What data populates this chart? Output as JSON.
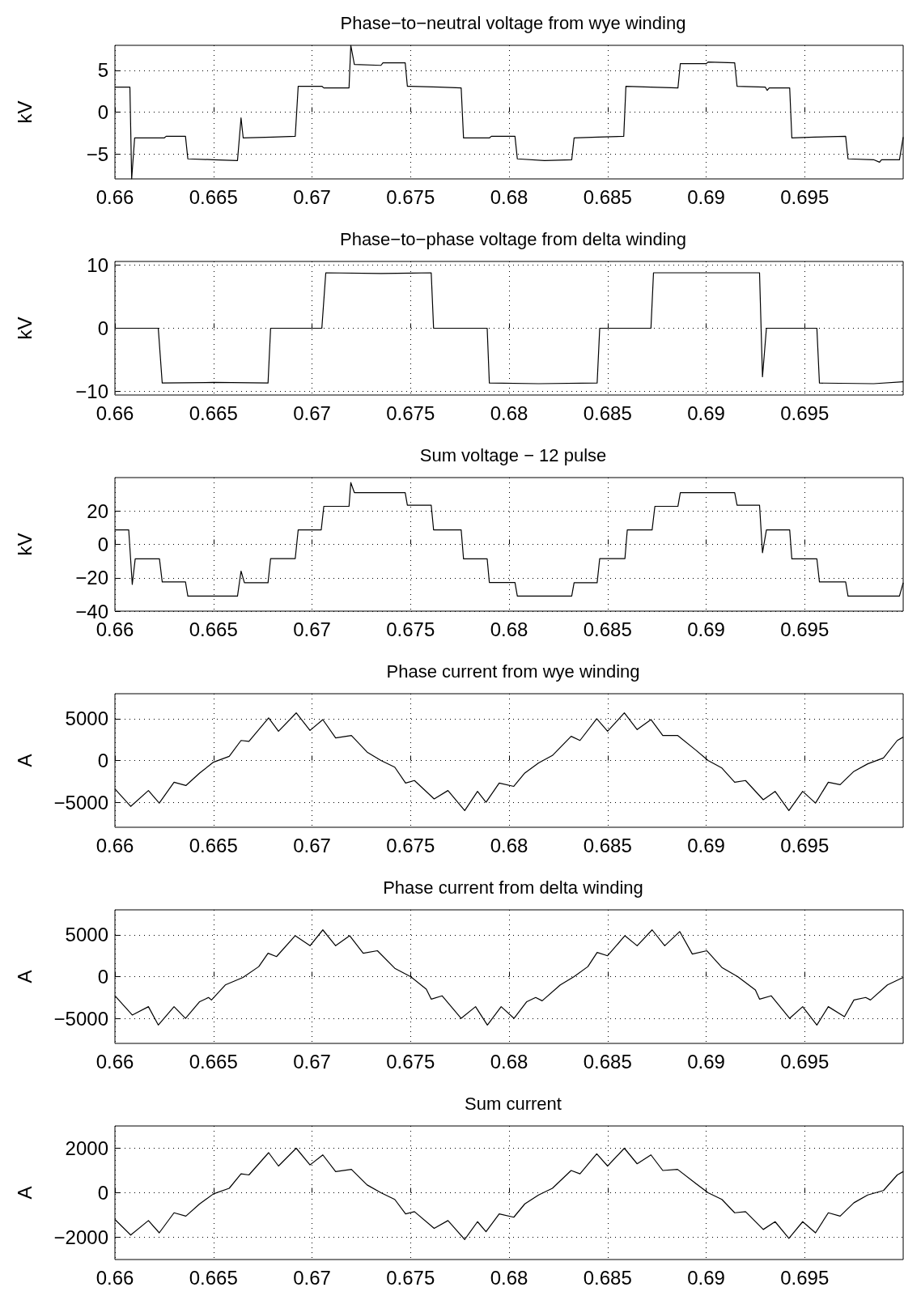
{
  "chart_data": [
    {
      "type": "line",
      "title": "Phase−to−neutral voltage from wye winding",
      "ylabel": "kV",
      "color": "#000000",
      "marker": "none",
      "grid": true,
      "xlim": [
        0.66,
        0.7
      ],
      "xticks": [
        0.66,
        0.665,
        0.67,
        0.675,
        0.68,
        0.685,
        0.69,
        0.695
      ],
      "ylim": [
        -8,
        8
      ],
      "yticks": [
        -5,
        0,
        5
      ],
      "x": [
        0.66,
        0.66076,
        0.66085,
        0.661,
        0.6625,
        0.6626,
        0.66358,
        0.6637,
        0.665,
        0.66622,
        0.6664,
        0.66651,
        0.668,
        0.66915,
        0.6693,
        0.6705,
        0.6706,
        0.67188,
        0.67197,
        0.67215,
        0.6735,
        0.6736,
        0.67473,
        0.67484,
        0.6765,
        0.67757,
        0.67769,
        0.679,
        0.6791,
        0.6803,
        0.68042,
        0.6818,
        0.68318,
        0.6833,
        0.6845,
        0.68582,
        0.68593,
        0.6872,
        0.68857,
        0.68869,
        0.69,
        0.6901,
        0.69145,
        0.69157,
        0.693,
        0.6931,
        0.6932,
        0.69424,
        0.69435,
        0.6955,
        0.69708,
        0.6972,
        0.6985,
        0.6988,
        0.6989,
        0.69981,
        0.7
      ],
      "values": [
        3,
        3,
        -8,
        -3.1,
        -3.1,
        -2.9,
        -2.9,
        -5.6,
        -5.7,
        -5.8,
        -0.7,
        -3.1,
        -3.0,
        -2.9,
        3.1,
        3.1,
        2.9,
        2.9,
        8,
        5.7,
        5.6,
        5.9,
        5.9,
        3.1,
        3.0,
        2.9,
        -3.1,
        -3.1,
        -2.9,
        -2.9,
        -5.6,
        -5.8,
        -5.7,
        -3.1,
        -3.0,
        -2.9,
        3.1,
        3.0,
        2.9,
        5.8,
        5.8,
        6.0,
        5.9,
        3.1,
        3.0,
        2.6,
        2.9,
        2.9,
        -3.1,
        -3.0,
        -2.9,
        -5.6,
        -5.7,
        -6.0,
        -5.7,
        -5.7,
        -3
      ]
    },
    {
      "type": "line",
      "title": "Phase−to−phase voltage from delta winding",
      "ylabel": "kV",
      "color": "#000000",
      "marker": "none",
      "grid": true,
      "xlim": [
        0.66,
        0.7
      ],
      "xticks": [
        0.66,
        0.665,
        0.67,
        0.675,
        0.68,
        0.685,
        0.69,
        0.695
      ],
      "ylim": [
        -10.6,
        10.6
      ],
      "yticks": [
        -10,
        0,
        10
      ],
      "x": [
        0.66,
        0.6622,
        0.6624,
        0.665,
        0.66777,
        0.6679,
        0.6705,
        0.6707,
        0.6735,
        0.67605,
        0.67617,
        0.67889,
        0.679,
        0.6815,
        0.68447,
        0.6846,
        0.6872,
        0.68733,
        0.69,
        0.69271,
        0.69286,
        0.69306,
        0.69562,
        0.69575,
        0.6985,
        0.7
      ],
      "values": [
        0,
        0,
        -8.7,
        -8.6,
        -8.7,
        0,
        0,
        8.8,
        8.7,
        8.8,
        0,
        0,
        -8.7,
        -8.8,
        -8.7,
        0,
        0,
        8.8,
        8.8,
        8.8,
        -7.7,
        0,
        0,
        -8.7,
        -8.8,
        -8.5
      ]
    },
    {
      "type": "line",
      "title": "Sum voltage − 12 pulse",
      "ylabel": "kV",
      "color": "#000000",
      "marker": "none",
      "grid": true,
      "xlim": [
        0.66,
        0.7
      ],
      "xticks": [
        0.66,
        0.665,
        0.67,
        0.675,
        0.68,
        0.685,
        0.69,
        0.695
      ],
      "ylim": [
        -40,
        40
      ],
      "yticks": [
        -40,
        -20,
        0,
        20
      ],
      "x": [
        0.66,
        0.6607,
        0.66088,
        0.66103,
        0.66226,
        0.6624,
        0.66358,
        0.6637,
        0.66622,
        0.6664,
        0.66657,
        0.66777,
        0.6679,
        0.66915,
        0.6693,
        0.67047,
        0.6706,
        0.67188,
        0.67197,
        0.67215,
        0.67473,
        0.67484,
        0.67605,
        0.67617,
        0.67757,
        0.67769,
        0.67889,
        0.679,
        0.6803,
        0.68042,
        0.68318,
        0.6833,
        0.68447,
        0.6846,
        0.68588,
        0.686,
        0.68726,
        0.6874,
        0.68857,
        0.68869,
        0.69145,
        0.69157,
        0.69271,
        0.69286,
        0.69306,
        0.69424,
        0.69435,
        0.69562,
        0.69575,
        0.69708,
        0.6972,
        0.69981,
        0.7
      ],
      "values": [
        8.7,
        8.7,
        -24,
        -8.7,
        -8.7,
        -22.5,
        -22.5,
        -31,
        -31,
        -16,
        -23,
        -23,
        -8.5,
        -8.5,
        8.7,
        8.7,
        22.8,
        22.8,
        37,
        31,
        31,
        23.5,
        23.5,
        8.7,
        8.7,
        -8.7,
        -8.7,
        -22.8,
        -22.8,
        -31,
        -31,
        -23,
        -23,
        -8.5,
        -8.5,
        8.7,
        8.7,
        22.8,
        22.8,
        31,
        31,
        23.5,
        23.5,
        -5,
        8.7,
        8.7,
        -8.7,
        -8.7,
        -22.5,
        -22.5,
        -31,
        -31,
        -23
      ]
    },
    {
      "type": "line",
      "title": "Phase current from wye winding",
      "ylabel": "A",
      "color": "#000000",
      "marker": "none",
      "grid": true,
      "xlim": [
        0.66,
        0.7
      ],
      "xticks": [
        0.66,
        0.665,
        0.67,
        0.675,
        0.68,
        0.685,
        0.69,
        0.695
      ],
      "ylim": [
        -8000,
        8000
      ],
      "yticks": [
        -5000,
        0,
        5000
      ],
      "x": [
        0.66,
        0.6608,
        0.6617,
        0.66225,
        0.663,
        0.6636,
        0.6643,
        0.665,
        0.6658,
        0.6664,
        0.6668,
        0.6678,
        0.6683,
        0.6692,
        0.6699,
        0.67055,
        0.6712,
        0.672,
        0.6728,
        0.6735,
        0.6742,
        0.67475,
        0.6752,
        0.6762,
        0.6769,
        0.67775,
        0.6784,
        0.67883,
        0.6795,
        0.68024,
        0.6808,
        0.6815,
        0.6822,
        0.68315,
        0.6836,
        0.68445,
        0.685,
        0.68585,
        0.6865,
        0.6872,
        0.6878,
        0.68855,
        0.6895,
        0.6901,
        0.6908,
        0.69145,
        0.692,
        0.6929,
        0.6935,
        0.6942,
        0.6949,
        0.69555,
        0.6962,
        0.6968,
        0.6975,
        0.6982,
        0.699,
        0.6997,
        0.7
      ],
      "values": [
        -3400,
        -5500,
        -3600,
        -5100,
        -2600,
        -3000,
        -1500,
        -200,
        500,
        2400,
        2300,
        5100,
        3500,
        5700,
        3600,
        4900,
        2700,
        3000,
        1000,
        0,
        -800,
        -2700,
        -2400,
        -4600,
        -3600,
        -6000,
        -3700,
        -5000,
        -2700,
        -3100,
        -1500,
        -300,
        600,
        2900,
        2400,
        5000,
        3500,
        5700,
        3700,
        4900,
        3000,
        3000,
        1200,
        0,
        -900,
        -2600,
        -2400,
        -4700,
        -3700,
        -6000,
        -3700,
        -5100,
        -2600,
        -2900,
        -1300,
        -400,
        300,
        2400,
        2800
      ]
    },
    {
      "type": "line",
      "title": "Phase current from delta winding",
      "ylabel": "A",
      "color": "#000000",
      "marker": "none",
      "grid": true,
      "xlim": [
        0.66,
        0.7
      ],
      "xticks": [
        0.66,
        0.665,
        0.67,
        0.675,
        0.68,
        0.685,
        0.69,
        0.695
      ],
      "ylim": [
        -8000,
        8000
      ],
      "yticks": [
        -5000,
        0,
        5000
      ],
      "x": [
        0.66,
        0.66088,
        0.6617,
        0.6622,
        0.663,
        0.66358,
        0.6643,
        0.66475,
        0.6649,
        0.6656,
        0.6665,
        0.6673,
        0.66777,
        0.6682,
        0.66915,
        0.6699,
        0.67055,
        0.6712,
        0.67191,
        0.6726,
        0.67332,
        0.6742,
        0.675,
        0.6758,
        0.67605,
        0.6766,
        0.67757,
        0.6783,
        0.6789,
        0.6796,
        0.68025,
        0.6809,
        0.68135,
        0.68168,
        0.6826,
        0.6833,
        0.684,
        0.68447,
        0.685,
        0.68588,
        0.6865,
        0.68726,
        0.6879,
        0.68866,
        0.6893,
        0.69004,
        0.6908,
        0.6916,
        0.6925,
        0.69271,
        0.6933,
        0.69424,
        0.6949,
        0.69562,
        0.6962,
        0.69702,
        0.6975,
        0.6981,
        0.69834,
        0.6992,
        0.7
      ],
      "values": [
        -2300,
        -4600,
        -3600,
        -5800,
        -3600,
        -5000,
        -3000,
        -2500,
        -2800,
        -1000,
        -100,
        1200,
        2800,
        2400,
        4900,
        3700,
        5600,
        3700,
        4900,
        2800,
        3100,
        1000,
        0,
        -1500,
        -2700,
        -2300,
        -5000,
        -3600,
        -5800,
        -3600,
        -5000,
        -3000,
        -2500,
        -2900,
        -1000,
        0,
        1200,
        2900,
        2500,
        4900,
        3700,
        5600,
        3700,
        5400,
        2700,
        3100,
        1100,
        0,
        -1600,
        -2700,
        -2300,
        -5000,
        -3600,
        -5800,
        -3600,
        -4800,
        -2800,
        -2500,
        -2800,
        -1000,
        -100
      ]
    },
    {
      "type": "line",
      "title": "Sum current",
      "ylabel": "A",
      "color": "#000000",
      "marker": "none",
      "grid": true,
      "xlim": [
        0.66,
        0.7
      ],
      "xticks": [
        0.66,
        0.665,
        0.67,
        0.675,
        0.68,
        0.685,
        0.69,
        0.695
      ],
      "ylim": [
        -3000,
        3000
      ],
      "yticks": [
        -2000,
        0,
        2000
      ],
      "x": [
        0.66,
        0.6608,
        0.6617,
        0.66225,
        0.663,
        0.6636,
        0.6643,
        0.665,
        0.6658,
        0.6664,
        0.6668,
        0.6678,
        0.6683,
        0.6692,
        0.6699,
        0.67055,
        0.6712,
        0.672,
        0.6728,
        0.6735,
        0.6742,
        0.67475,
        0.6752,
        0.6762,
        0.6769,
        0.67775,
        0.6784,
        0.67883,
        0.6795,
        0.68024,
        0.6808,
        0.6815,
        0.6822,
        0.68315,
        0.6836,
        0.68445,
        0.685,
        0.68585,
        0.6865,
        0.6872,
        0.6878,
        0.68855,
        0.6895,
        0.6901,
        0.6908,
        0.69145,
        0.692,
        0.6929,
        0.6935,
        0.6942,
        0.6949,
        0.69555,
        0.6962,
        0.6968,
        0.6975,
        0.6982,
        0.699,
        0.6997,
        0.7
      ],
      "values": [
        -1200,
        -1900,
        -1250,
        -1800,
        -900,
        -1050,
        -500,
        -50,
        200,
        850,
        800,
        1800,
        1200,
        2000,
        1250,
        1700,
        950,
        1050,
        350,
        0,
        -300,
        -950,
        -850,
        -1600,
        -1250,
        -2100,
        -1300,
        -1750,
        -950,
        -1100,
        -500,
        -100,
        200,
        1000,
        850,
        1750,
        1200,
        2000,
        1300,
        1700,
        1000,
        1050,
        400,
        0,
        -300,
        -900,
        -850,
        -1650,
        -1300,
        -2050,
        -1300,
        -1800,
        -900,
        -1050,
        -450,
        -100,
        100,
        800,
        950
      ]
    }
  ]
}
